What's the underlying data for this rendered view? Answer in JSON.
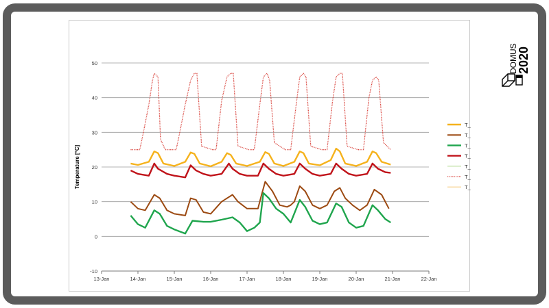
{
  "logo": {
    "text": "DOMUS 2020",
    "line1": "DOMUS",
    "line2": "2020"
  },
  "chart_data": {
    "type": "line",
    "xlabel": "",
    "ylabel": "Temperature [°C]",
    "ylim": [
      -10,
      50
    ],
    "yticks": [
      -10,
      0,
      10,
      20,
      30,
      40,
      50
    ],
    "xticks": [
      "13-Jan",
      "14-Jan",
      "15-Jan",
      "16-Jan",
      "17-Jan",
      "18-Jan",
      "19-Jan",
      "20-Jan",
      "21-Jan",
      "22-Jan"
    ],
    "grid": "horizontal",
    "legend_position": "right",
    "series": [
      {
        "name": "T_ETA",
        "color": "#f5b21c",
        "style": "solid",
        "width": 2.4,
        "x": [
          13.8,
          14.0,
          14.3,
          14.45,
          14.55,
          14.7,
          15.0,
          15.3,
          15.45,
          15.55,
          15.7,
          16.0,
          16.3,
          16.45,
          16.55,
          16.7,
          17.0,
          17.35,
          17.5,
          17.6,
          17.75,
          18.0,
          18.3,
          18.45,
          18.55,
          18.7,
          19.0,
          19.3,
          19.45,
          19.55,
          19.7,
          20.0,
          20.3,
          20.45,
          20.55,
          20.7,
          20.95
        ],
        "y": [
          21,
          20.6,
          21.5,
          24.5,
          24,
          21,
          20.3,
          21.5,
          24.2,
          23.8,
          21,
          20.2,
          21.5,
          24,
          23.5,
          21,
          20.3,
          21.5,
          24.3,
          23.8,
          21,
          20.3,
          21.5,
          24.5,
          24,
          21,
          20.5,
          22,
          25.3,
          24.5,
          21,
          20.3,
          21.5,
          24.5,
          24,
          21.5,
          20.7
        ]
      },
      {
        "name": "T_EHA",
        "color": "#9c4a12",
        "style": "solid",
        "width": 2.0,
        "x": [
          13.8,
          14.0,
          14.2,
          14.45,
          14.6,
          14.8,
          15.0,
          15.3,
          15.45,
          15.6,
          15.8,
          16.0,
          16.3,
          16.6,
          16.75,
          17.0,
          17.3,
          17.4,
          17.5,
          17.7,
          17.9,
          18.1,
          18.2,
          18.3,
          18.45,
          18.6,
          18.8,
          19.0,
          19.2,
          19.4,
          19.55,
          19.7,
          19.9,
          20.1,
          20.3,
          20.5,
          20.7,
          20.9
        ],
        "y": [
          10,
          8,
          7.5,
          12,
          11,
          7.5,
          6.5,
          6,
          11,
          10.5,
          7,
          6.5,
          10,
          12,
          10,
          8,
          8,
          12,
          15.8,
          13,
          9,
          8.5,
          9,
          10,
          14.5,
          13,
          9,
          8,
          9,
          13,
          14,
          11,
          9,
          7.5,
          9,
          13.5,
          12,
          8
        ]
      },
      {
        "name": "T_ODA",
        "color": "#1fa54d",
        "style": "solid",
        "width": 2.4,
        "x": [
          13.8,
          14.0,
          14.2,
          14.45,
          14.6,
          14.8,
          15.0,
          15.3,
          15.5,
          15.8,
          16.0,
          16.3,
          16.6,
          16.8,
          17.0,
          17.2,
          17.35,
          17.45,
          17.6,
          17.8,
          18.0,
          18.2,
          18.45,
          18.6,
          18.8,
          19.0,
          19.2,
          19.45,
          19.6,
          19.8,
          20.0,
          20.2,
          20.45,
          20.6,
          20.8,
          20.95
        ],
        "y": [
          6,
          3.5,
          2.5,
          7.5,
          6.5,
          3,
          2,
          0.8,
          4.5,
          4.2,
          4.2,
          4.8,
          5.5,
          4,
          1.5,
          2.5,
          4,
          12.5,
          11,
          8,
          6.5,
          4,
          10.5,
          8.5,
          4.5,
          3.5,
          4,
          9.5,
          8.5,
          4,
          2.5,
          3,
          9,
          7.5,
          5,
          4
        ]
      },
      {
        "name": "T_SUP",
        "color": "#c0131a",
        "style": "solid",
        "width": 2.4,
        "x": [
          13.8,
          14.0,
          14.3,
          14.45,
          14.55,
          14.8,
          15.0,
          15.3,
          15.45,
          15.6,
          15.8,
          16.0,
          16.3,
          16.5,
          16.6,
          16.8,
          17.0,
          17.3,
          17.45,
          17.6,
          17.8,
          18.0,
          18.3,
          18.45,
          18.6,
          18.8,
          19.0,
          19.3,
          19.45,
          19.6,
          19.8,
          20.0,
          20.3,
          20.45,
          20.6,
          20.8,
          20.95
        ],
        "y": [
          19,
          18,
          17.5,
          21,
          19.5,
          18,
          17.5,
          17,
          20.5,
          19,
          18,
          17.5,
          18,
          21,
          19.5,
          18,
          17.5,
          17.5,
          21,
          19.5,
          18,
          17.5,
          18,
          21,
          19.5,
          18,
          17.5,
          18,
          21,
          19.5,
          18,
          17.5,
          18,
          21,
          19.5,
          18.5,
          18.3
        ]
      },
      {
        "name": "T_CFL",
        "color": "#b9dc98",
        "style": "solid",
        "width": 1.2,
        "x": [],
        "y": []
      },
      {
        "name": "T_23",
        "color": "#d9443d",
        "style": "dotted",
        "width": 1.3,
        "x": [
          13.8,
          14.05,
          14.15,
          14.3,
          14.4,
          14.45,
          14.55,
          14.62,
          14.75,
          15.05,
          15.15,
          15.3,
          15.45,
          15.55,
          15.62,
          15.75,
          16.05,
          16.15,
          16.3,
          16.45,
          16.55,
          16.62,
          16.75,
          17.05,
          17.2,
          17.35,
          17.45,
          17.55,
          17.62,
          17.75,
          18.05,
          18.2,
          18.35,
          18.45,
          18.55,
          18.62,
          18.75,
          19.05,
          19.2,
          19.35,
          19.45,
          19.55,
          19.62,
          19.75,
          20.05,
          20.2,
          20.35,
          20.45,
          20.55,
          20.62,
          20.75,
          20.95
        ],
        "y": [
          25,
          25,
          30,
          38,
          45,
          47,
          46,
          28,
          25,
          25,
          30,
          38,
          45,
          47,
          47,
          26,
          25,
          25,
          39,
          46,
          47,
          47,
          26,
          25,
          25,
          38,
          46,
          47,
          45,
          27,
          25,
          25,
          38,
          46,
          47,
          46,
          26,
          25,
          25,
          39,
          46,
          47,
          47,
          26,
          25,
          25,
          40,
          45,
          46,
          45,
          27,
          25
        ]
      },
      {
        "name": "T_CH",
        "color": "#f7cf86",
        "style": "solid",
        "width": 1.2,
        "x": [],
        "y": []
      }
    ]
  }
}
